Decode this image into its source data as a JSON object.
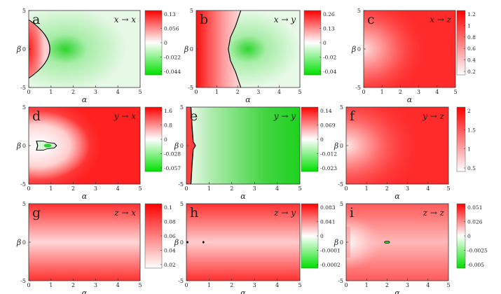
{
  "chart_data": [
    {
      "type": "heatmap",
      "panel_label": "a",
      "title": "x → x",
      "xlabel": "α",
      "ylabel": "β",
      "xlim": [
        0,
        5
      ],
      "ylim": [
        -5,
        5
      ],
      "x_ticks": [
        0,
        1,
        2,
        3,
        4,
        5
      ],
      "y_ticks": [
        5,
        0,
        -5
      ],
      "colorbar_ticks": [
        "0.13",
        "0.056",
        "0",
        "-0.022",
        "-0.044"
      ],
      "colorbar_colors": [
        "#ff0000",
        "#ffffff",
        "#00e000"
      ],
      "zero_contour": true,
      "regions": [
        "positive near α=0 (red semicircle, radius ≈1)",
        "negative elsewhere, minimum near α≈1.2, β=0"
      ]
    },
    {
      "type": "heatmap",
      "panel_label": "b",
      "title": "x → y",
      "xlabel": "α",
      "ylabel": "β",
      "xlim": [
        0,
        5
      ],
      "ylim": [
        -5,
        5
      ],
      "x_ticks": [
        0,
        1,
        2,
        3,
        4,
        5
      ],
      "y_ticks": [
        5,
        0,
        -5
      ],
      "colorbar_ticks": [
        "0.26",
        "0.13",
        "0",
        "-0.02",
        "-0.04"
      ],
      "colorbar_colors": [
        "#ff0000",
        "#ffffff",
        "#00e000"
      ],
      "zero_contour": true,
      "regions": [
        "positive for α < ≈1.8",
        "negative for larger α, minimum near α≈2.5, β=0"
      ]
    },
    {
      "type": "heatmap",
      "panel_label": "c",
      "title": "x → z",
      "xlabel": "α",
      "ylabel": "β",
      "xlim": [
        0,
        5
      ],
      "ylim": [
        -5,
        5
      ],
      "x_ticks": [
        0,
        1,
        2,
        3,
        4,
        5
      ],
      "y_ticks": [
        5,
        0,
        -5
      ],
      "colorbar_ticks": [
        "1.2",
        "1",
        "0.8",
        "0.6",
        "0.4",
        "0.2"
      ],
      "colorbar_colors": [
        "#ff0000",
        "#ffffff"
      ],
      "zero_contour": false,
      "regions": [
        "lowest near α=0, β=0; increasing outward"
      ]
    },
    {
      "type": "heatmap",
      "panel_label": "d",
      "title": "y → x",
      "xlabel": "α",
      "ylabel": "β",
      "xlim": [
        0,
        5
      ],
      "ylim": [
        -5,
        5
      ],
      "x_ticks": [
        0,
        1,
        2,
        3,
        4,
        5
      ],
      "y_ticks": [
        5,
        0,
        -5
      ],
      "colorbar_ticks": [
        "1.6",
        "0.8",
        "0",
        "-0.028",
        "-0.057"
      ],
      "colorbar_colors": [
        "#ff0000",
        "#ffffff",
        "#00e000"
      ],
      "zero_contour": true,
      "regions": [
        "positive almost everywhere",
        "small negative island near α≈1, β≈0"
      ]
    },
    {
      "type": "heatmap",
      "panel_label": "e",
      "title": "y → y",
      "xlabel": "α",
      "ylabel": "β",
      "xlim": [
        0,
        5
      ],
      "ylim": [
        -5,
        5
      ],
      "x_ticks": [
        0,
        1,
        2,
        3,
        4,
        5
      ],
      "y_ticks": [
        5,
        0,
        -5
      ],
      "colorbar_ticks": [
        "0.14",
        "0.069",
        "0",
        "-0.012",
        "-0.023"
      ],
      "colorbar_colors": [
        "#ff0000",
        "#ffffff",
        "#00e000"
      ],
      "zero_contour": true,
      "regions": [
        "positive thin strip near α=0",
        "negative elsewhere, decreasing toward α=5"
      ]
    },
    {
      "type": "heatmap",
      "panel_label": "f",
      "title": "y → z",
      "xlabel": "α",
      "ylabel": "β",
      "xlim": [
        0,
        5
      ],
      "ylim": [
        -5,
        5
      ],
      "x_ticks": [
        0,
        1,
        2,
        3,
        4,
        5
      ],
      "y_ticks": [
        5,
        0,
        -5
      ],
      "colorbar_ticks": [
        "2",
        "1.5",
        "1",
        "0.5"
      ],
      "colorbar_colors": [
        "#ff0000",
        "#ffffff"
      ],
      "zero_contour": false,
      "regions": [
        "lowest near α=0, β=0; increasing outward"
      ]
    },
    {
      "type": "heatmap",
      "panel_label": "g",
      "title": "z → x",
      "xlabel": "α",
      "ylabel": "β",
      "xlim": [
        0,
        5
      ],
      "ylim": [
        -5,
        5
      ],
      "x_ticks": [
        0,
        1,
        2,
        3,
        4,
        5
      ],
      "y_ticks": [
        5,
        0,
        -5
      ],
      "colorbar_ticks": [
        "0.1",
        "0.08",
        "0.06",
        "0.04",
        "0.02"
      ],
      "colorbar_colors": [
        "#ff0000",
        "#ffffff"
      ],
      "zero_contour": false,
      "regions": [
        "lowest along β=0 band, highest at |β|=5"
      ]
    },
    {
      "type": "heatmap",
      "panel_label": "h",
      "title": "z → y",
      "xlabel": "α",
      "ylabel": "β",
      "xlim": [
        0,
        5
      ],
      "ylim": [
        -5,
        5
      ],
      "x_ticks": [
        0,
        1,
        2,
        3,
        4,
        5
      ],
      "y_ticks": [
        5,
        0,
        -5
      ],
      "colorbar_ticks": [
        "0.083",
        "0.041",
        "0",
        "-0.0001",
        "-0.0002"
      ],
      "colorbar_colors": [
        "#ff0000",
        "#ffffff",
        "#00e000"
      ],
      "zero_contour": true,
      "regions": [
        "positive almost everywhere",
        "tiny negative spots near α≈0 and α≈0.75 at β=0"
      ]
    },
    {
      "type": "heatmap",
      "panel_label": "i",
      "title": "z → z",
      "xlabel": "α",
      "ylabel": "β",
      "xlim": [
        0,
        5
      ],
      "ylim": [
        -5,
        5
      ],
      "x_ticks": [
        0,
        1,
        2,
        3,
        4,
        5
      ],
      "y_ticks": [
        5,
        0,
        -5
      ],
      "colorbar_ticks": [
        "0.051",
        "0.026",
        "0",
        "-0.0025",
        "-0.005"
      ],
      "colorbar_colors": [
        "#ff0000",
        "#ffffff",
        "#00e000"
      ],
      "zero_contour": true,
      "regions": [
        "positive almost everywhere",
        "tiny negative spot near α≈2, β=0"
      ]
    }
  ]
}
